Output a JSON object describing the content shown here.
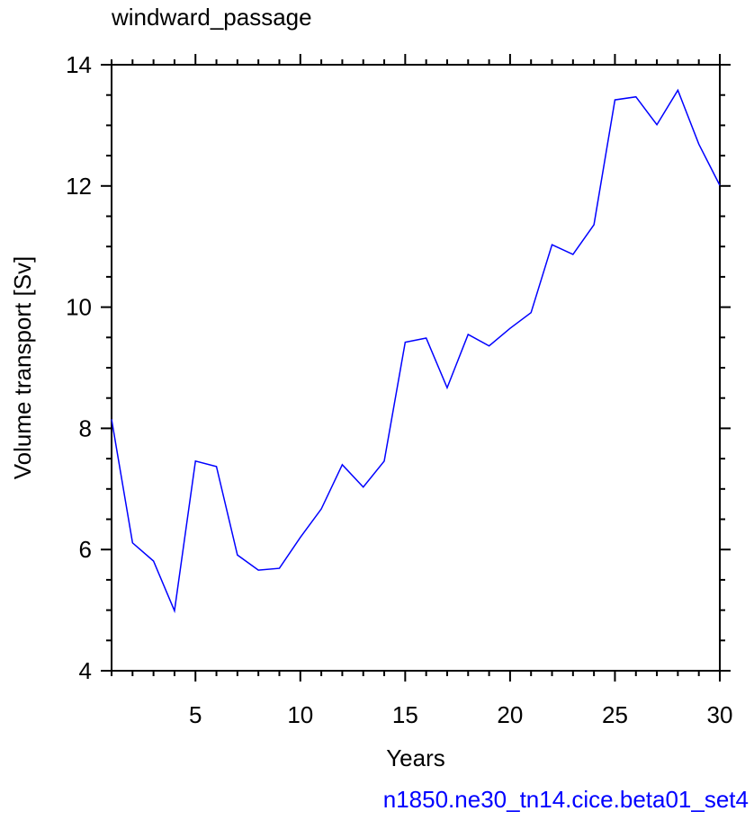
{
  "chart_data": {
    "type": "line",
    "title": "windward_passage",
    "xlabel": "Years",
    "ylabel": "Volume transport [Sv]",
    "subtitle": "n1850.ne30_tn14.cice.beta01_set4",
    "x": [
      1,
      2,
      3,
      4,
      5,
      6,
      7,
      8,
      9,
      10,
      11,
      12,
      13,
      14,
      15,
      16,
      17,
      18,
      19,
      20,
      21,
      22,
      23,
      24,
      25,
      26,
      27,
      28,
      29,
      30
    ],
    "series": [
      {
        "color": "#0000ff",
        "values": [
          8.15,
          6.11,
          5.81,
          4.99,
          7.46,
          7.37,
          5.91,
          5.66,
          5.69,
          6.2,
          6.67,
          7.4,
          7.03,
          7.46,
          9.42,
          9.49,
          8.67,
          9.55,
          9.36,
          9.65,
          9.91,
          11.03,
          10.87,
          11.36,
          13.42,
          13.47,
          13.01,
          13.58,
          12.69,
          12.01
        ]
      }
    ],
    "xlim": [
      1,
      30
    ],
    "ylim": [
      4,
      14
    ],
    "xticks": [
      5,
      10,
      15,
      20,
      25,
      30
    ],
    "yticks": [
      4,
      6,
      8,
      10,
      12,
      14
    ],
    "xminorticks": [
      1,
      2,
      3,
      4,
      6,
      7,
      8,
      9,
      11,
      12,
      13,
      14,
      16,
      17,
      18,
      19,
      21,
      22,
      23,
      24,
      26,
      27,
      28,
      29
    ],
    "yminorticks": [
      4.5,
      5,
      5.5,
      6.5,
      7,
      7.5,
      8.5,
      9,
      9.5,
      10.5,
      11,
      11.5,
      12.5,
      13,
      13.5
    ]
  }
}
